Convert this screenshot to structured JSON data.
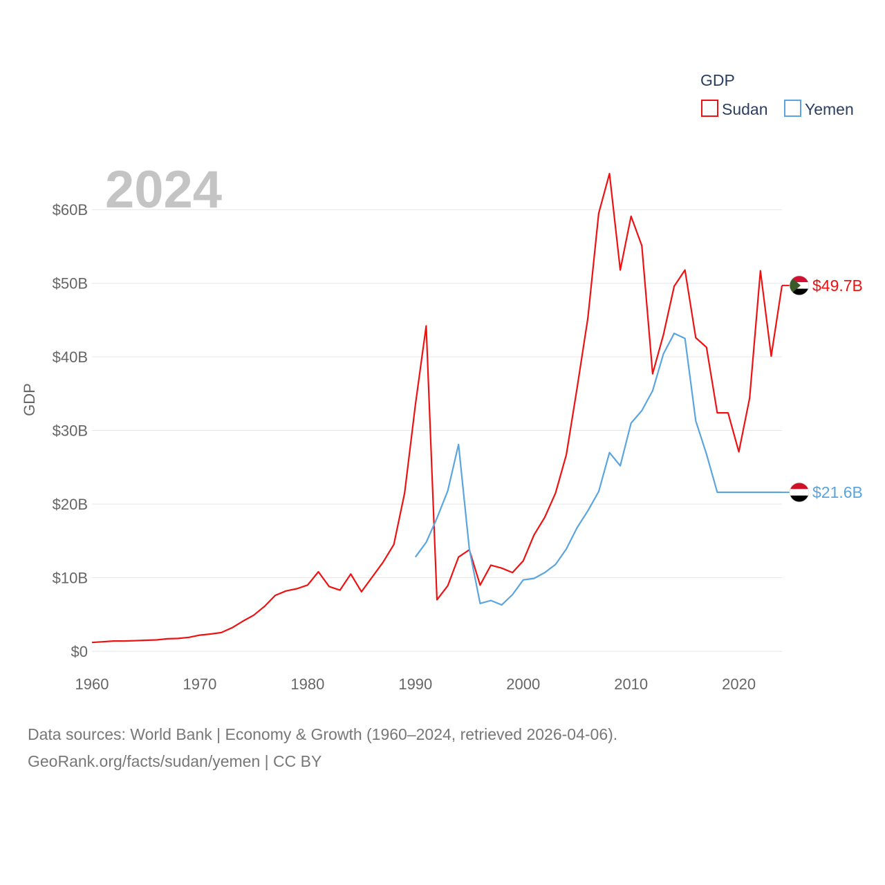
{
  "footer": {
    "line1": "Data sources: World Bank | Economy & Growth (1960–2024, retrieved 2026-04-06).",
    "line2": "GeoRank.org/facts/sudan/yemen | CC BY"
  },
  "chart_data": {
    "type": "line",
    "title": "",
    "watermark_year": "2024",
    "xlabel": "",
    "ylabel": "GDP",
    "xlim": [
      1960,
      2024
    ],
    "ylim": [
      0,
      65
    ],
    "x_ticks": [
      1960,
      1970,
      1980,
      1990,
      2000,
      2010,
      2020
    ],
    "x_tick_labels": [
      "1960",
      "1970",
      "1980",
      "1990",
      "2000",
      "2010",
      "2020"
    ],
    "y_ticks": [
      0,
      10,
      20,
      30,
      40,
      50,
      60
    ],
    "y_tick_labels": [
      "$0",
      "$10B",
      "$20B",
      "$30B",
      "$40B",
      "$50B",
      "$60B"
    ],
    "grid": true,
    "legend": {
      "title": "GDP",
      "position": "top-right"
    },
    "series": [
      {
        "name": "Sudan",
        "color": "#ee1111",
        "end_label": "$49.7B",
        "flag": "sudan-flag",
        "x": [
          1960,
          1961,
          1962,
          1963,
          1964,
          1965,
          1966,
          1967,
          1968,
          1969,
          1970,
          1971,
          1972,
          1973,
          1974,
          1975,
          1976,
          1977,
          1978,
          1979,
          1980,
          1981,
          1982,
          1983,
          1984,
          1985,
          1986,
          1987,
          1988,
          1989,
          1990,
          1991,
          1992,
          1993,
          1994,
          1995,
          1996,
          1997,
          1998,
          1999,
          2000,
          2001,
          2002,
          2003,
          2004,
          2005,
          2006,
          2007,
          2008,
          2009,
          2010,
          2011,
          2012,
          2013,
          2014,
          2015,
          2016,
          2017,
          2018,
          2019,
          2020,
          2021,
          2022,
          2023,
          2024
        ],
        "values": [
          1.2,
          1.3,
          1.4,
          1.4,
          1.45,
          1.5,
          1.55,
          1.7,
          1.75,
          1.9,
          2.2,
          2.35,
          2.55,
          3.2,
          4.1,
          4.9,
          6.1,
          7.6,
          8.2,
          8.5,
          9.0,
          10.8,
          8.8,
          8.3,
          10.5,
          8.1,
          10.1,
          12.1,
          14.5,
          21.5,
          33.5,
          44.2,
          7.0,
          8.9,
          12.8,
          13.8,
          9.0,
          11.7,
          11.3,
          10.7,
          12.3,
          15.8,
          18.2,
          21.5,
          26.7,
          35.8,
          45.3,
          59.5,
          64.9,
          51.8,
          59.1,
          55.1,
          37.7,
          43.0,
          49.6,
          51.8,
          42.6,
          41.3,
          32.4,
          32.4,
          27.1,
          34.4,
          51.7,
          40.1,
          49.7
        ]
      },
      {
        "name": "Yemen",
        "color": "#5aa5e0",
        "end_label": "$21.6B",
        "flag": "yemen-flag",
        "x": [
          1990,
          1991,
          1992,
          1993,
          1994,
          1995,
          1996,
          1997,
          1998,
          1999,
          2000,
          2001,
          2002,
          2003,
          2004,
          2005,
          2006,
          2007,
          2008,
          2009,
          2010,
          2011,
          2012,
          2013,
          2014,
          2015,
          2016,
          2017,
          2018,
          2019,
          2020,
          2021,
          2022,
          2023,
          2024
        ],
        "values": [
          12.8,
          14.8,
          18.1,
          21.8,
          28.1,
          13.9,
          6.5,
          6.9,
          6.3,
          7.7,
          9.7,
          9.9,
          10.7,
          11.8,
          13.9,
          16.8,
          19.1,
          21.7,
          27.0,
          25.2,
          31.0,
          32.7,
          35.4,
          40.4,
          43.2,
          42.5,
          31.3,
          26.8,
          21.6,
          21.6,
          21.6,
          21.6,
          21.6,
          21.6,
          21.6
        ]
      }
    ]
  }
}
